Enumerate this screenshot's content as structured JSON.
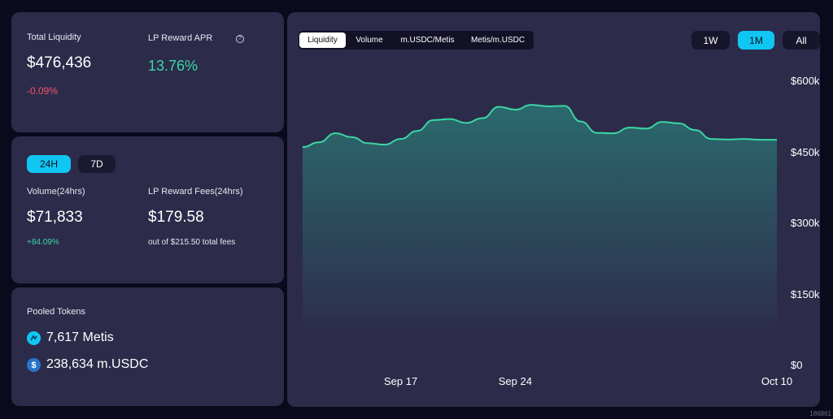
{
  "summary": {
    "total_liquidity_label": "Total Liquidity",
    "total_liquidity_value": "$476,436",
    "total_liquidity_change": "-0.09%",
    "apr_label": "LP Reward APR",
    "apr_info_icon": "?",
    "apr_value": "13.76%"
  },
  "volume_card": {
    "periods": [
      "24H",
      "7D"
    ],
    "active_period": "24H",
    "volume_label": "Volume(24hrs)",
    "volume_value": "$71,833",
    "volume_change": "+84.09%",
    "fees_label": "LP Reward Fees(24hrs)",
    "fees_value": "$179.58",
    "fees_note": "out of $215.50 total fees"
  },
  "pooled": {
    "label": "Pooled Tokens",
    "tokens": [
      {
        "amount": "7,617 Metis",
        "icon": "metis-icon"
      },
      {
        "amount": "238,634 m.USDC",
        "icon": "usdc-icon"
      }
    ]
  },
  "chart_panel": {
    "tabs": [
      "Liquidity",
      "Volume",
      "m.USDC/Metis",
      "Metis/m.USDC"
    ],
    "active_tab": "Liquidity",
    "ranges": [
      "1W",
      "1M",
      "All"
    ],
    "active_range": "1M",
    "accent_color": "#10c6f2",
    "line_color": "#3ad7a4"
  },
  "chart_data": {
    "type": "area",
    "ylim": [
      0,
      600000
    ],
    "y_ticks": [
      {
        "label": "$600k",
        "value": 600000
      },
      {
        "label": "$450k",
        "value": 450000
      },
      {
        "label": "$300k",
        "value": 300000
      },
      {
        "label": "$150k",
        "value": 150000
      },
      {
        "label": "$0",
        "value": 0
      }
    ],
    "x_ticks": [
      {
        "label": "Sep 17",
        "index": 6
      },
      {
        "label": "Sep 24",
        "index": 13
      },
      {
        "label": "Oct 10",
        "index": 29
      }
    ],
    "values": [
      461000,
      471000,
      490000,
      482000,
      469000,
      466000,
      478000,
      495000,
      518000,
      520000,
      512000,
      522000,
      546000,
      540000,
      550000,
      547000,
      548000,
      515000,
      491000,
      490000,
      502000,
      500000,
      514000,
      511000,
      497000,
      478000,
      477000,
      478000,
      476436,
      476436
    ]
  },
  "footer": {
    "corner_text": "186861"
  }
}
